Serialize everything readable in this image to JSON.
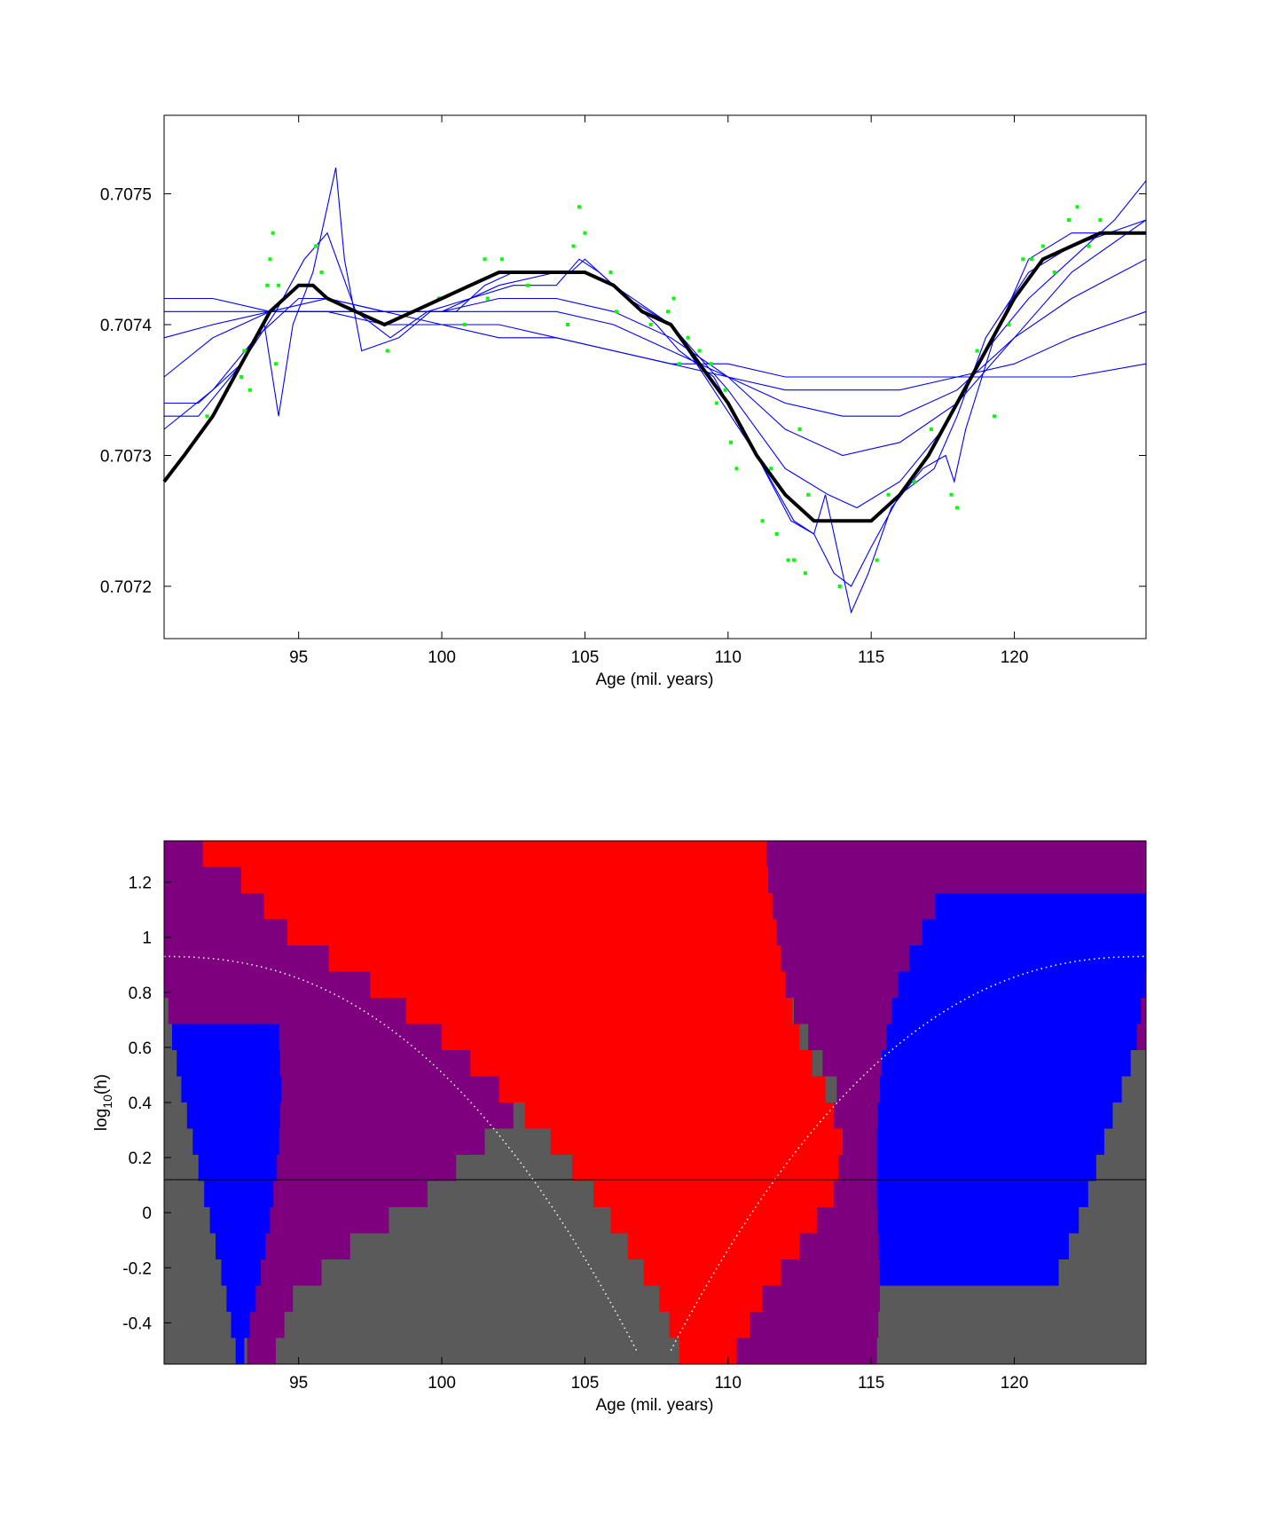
{
  "chart_data": [
    {
      "type": "line",
      "title": "",
      "xlabel": "Age (mil. years)",
      "ylabel": "",
      "xlim": [
        90.3,
        124.6
      ],
      "ylim": [
        0.70716,
        0.70756
      ],
      "xticks": [
        95,
        100,
        105,
        110,
        115,
        120
      ],
      "yticks": [
        0.7072,
        0.7073,
        0.7074,
        0.7075
      ],
      "grid": false,
      "colors": {
        "fits": "#0000ff",
        "mean": "#000000",
        "points": "#00ff00"
      },
      "main_curve": {
        "x": [
          90.3,
          91,
          92,
          93,
          94,
          95,
          95.5,
          96,
          97,
          98,
          99,
          100,
          101,
          102,
          103,
          104,
          105,
          106,
          107,
          108,
          109,
          110,
          111,
          112,
          113,
          114,
          115,
          116,
          117,
          118,
          119,
          120,
          121,
          122,
          123,
          124,
          124.6
        ],
        "y": [
          0.70728,
          0.7073,
          0.70733,
          0.70737,
          0.70741,
          0.70743,
          0.70743,
          0.70742,
          0.70741,
          0.7074,
          0.70741,
          0.70742,
          0.70743,
          0.70744,
          0.70744,
          0.70744,
          0.70744,
          0.70743,
          0.70741,
          0.7074,
          0.70737,
          0.70734,
          0.7073,
          0.70727,
          0.70725,
          0.70725,
          0.70725,
          0.70727,
          0.7073,
          0.70734,
          0.70738,
          0.70742,
          0.70745,
          0.70746,
          0.70747,
          0.70747,
          0.70747
        ]
      },
      "family_curves": [
        {
          "x": [
            90.3,
            92,
            94,
            96,
            98,
            100,
            102,
            104,
            106,
            108,
            110,
            112,
            114,
            116,
            118,
            120,
            122,
            124.6
          ],
          "y": [
            0.70742,
            0.70742,
            0.70741,
            0.70741,
            0.7074,
            0.7074,
            0.70739,
            0.70739,
            0.70738,
            0.70737,
            0.70737,
            0.70736,
            0.70736,
            0.70736,
            0.70736,
            0.70736,
            0.70736,
            0.70737
          ]
        },
        {
          "x": [
            90.3,
            92,
            94,
            96,
            98,
            100,
            102,
            104,
            106,
            108,
            110,
            112,
            114,
            116,
            118,
            120,
            122,
            124.6
          ],
          "y": [
            0.70741,
            0.70741,
            0.70741,
            0.70741,
            0.70741,
            0.7074,
            0.7074,
            0.70739,
            0.70738,
            0.70737,
            0.70736,
            0.70735,
            0.70735,
            0.70735,
            0.70736,
            0.70737,
            0.70739,
            0.70741
          ]
        },
        {
          "x": [
            90.3,
            92,
            94,
            96,
            98,
            100,
            102,
            104,
            106,
            108,
            110,
            112,
            114,
            116,
            118,
            120,
            122,
            124.6
          ],
          "y": [
            0.70739,
            0.7074,
            0.70741,
            0.70741,
            0.70741,
            0.70741,
            0.70741,
            0.70741,
            0.7074,
            0.70738,
            0.70736,
            0.70734,
            0.70733,
            0.70733,
            0.70735,
            0.70739,
            0.70742,
            0.70745
          ]
        },
        {
          "x": [
            90.3,
            92,
            94,
            96,
            98,
            100,
            102,
            104,
            106,
            108,
            110,
            112,
            114,
            116,
            118,
            120,
            122,
            124.6
          ],
          "y": [
            0.70736,
            0.70739,
            0.70741,
            0.70742,
            0.70741,
            0.70741,
            0.70742,
            0.70742,
            0.70741,
            0.70739,
            0.70736,
            0.70732,
            0.7073,
            0.70731,
            0.70734,
            0.70739,
            0.70744,
            0.70748
          ]
        },
        {
          "x": [
            90.3,
            92,
            93.5,
            95,
            96,
            98,
            100,
            102,
            104,
            105,
            106,
            108,
            110,
            112,
            113.5,
            114.5,
            116,
            117.5,
            119,
            120.5,
            122,
            123.5,
            124.6
          ],
          "y": [
            0.70732,
            0.70735,
            0.70739,
            0.70742,
            0.70742,
            0.70741,
            0.70741,
            0.70743,
            0.70744,
            0.70744,
            0.70743,
            0.7074,
            0.70735,
            0.70729,
            0.70727,
            0.70726,
            0.70728,
            0.70732,
            0.70738,
            0.70742,
            0.70745,
            0.70748,
            0.70751
          ]
        },
        {
          "x": [
            90.3,
            91.5,
            93,
            94.2,
            95.2,
            96,
            97,
            98.2,
            99.5,
            101,
            102.5,
            104,
            104.8,
            105.5,
            106.5,
            108,
            109.5,
            111,
            112.2,
            113,
            113.7,
            114.3,
            115,
            116,
            117.2,
            118,
            119,
            120.5,
            122,
            123.3,
            124.6
          ],
          "y": [
            0.70734,
            0.70734,
            0.70737,
            0.70741,
            0.70745,
            0.70747,
            0.70741,
            0.70739,
            0.70741,
            0.70742,
            0.70743,
            0.70743,
            0.70745,
            0.70744,
            0.70742,
            0.7074,
            0.70735,
            0.7073,
            0.70725,
            0.70724,
            0.70721,
            0.7072,
            0.70723,
            0.70727,
            0.70729,
            0.70733,
            0.70739,
            0.70744,
            0.70746,
            0.70747,
            0.70748
          ]
        },
        {
          "x": [
            90.3,
            91.5,
            93,
            93.8,
            94.3,
            94.8,
            95.5,
            96,
            96.3,
            96.6,
            97.2,
            98.5,
            99.6,
            100.5,
            101.5,
            102.5,
            103.5,
            104.5,
            105,
            106,
            107.5,
            108.3,
            109.5,
            111,
            112.3,
            113,
            113.4,
            113.8,
            114.3,
            114.9,
            115.7,
            116.8,
            117.6,
            117.9,
            118.3,
            119.3,
            120.5,
            122,
            123.3,
            124.6
          ],
          "y": [
            0.70733,
            0.70733,
            0.70737,
            0.7074,
            0.70733,
            0.7074,
            0.70744,
            0.70749,
            0.70752,
            0.70745,
            0.70738,
            0.70739,
            0.70741,
            0.70741,
            0.70743,
            0.70744,
            0.70744,
            0.70744,
            0.70745,
            0.70743,
            0.7074,
            0.70738,
            0.70736,
            0.7073,
            0.70725,
            0.70724,
            0.70727,
            0.70723,
            0.70718,
            0.70721,
            0.70726,
            0.70729,
            0.7073,
            0.70728,
            0.70732,
            0.70739,
            0.70745,
            0.70747,
            0.70747,
            0.70747
          ]
        }
      ],
      "points": {
        "x": [
          91.8,
          92.5,
          93.0,
          93.1,
          93.3,
          93.9,
          94.0,
          94.1,
          94.2,
          94.3,
          95.6,
          95.8,
          98.1,
          99.9,
          100.8,
          101.5,
          101.6,
          102.1,
          103.0,
          104.4,
          104.6,
          104.8,
          105.0,
          105.9,
          106.1,
          107.3,
          107.9,
          108.1,
          108.3,
          108.6,
          109.0,
          109.4,
          109.6,
          109.9,
          110.1,
          110.3,
          110.5,
          111.2,
          111.5,
          111.7,
          112.1,
          112.3,
          112.5,
          112.7,
          112.8,
          113.9,
          115.2,
          115.6,
          116.5,
          117.1,
          117.8,
          118.0,
          118.7,
          119.3,
          119.8,
          120.3,
          120.6,
          121.0,
          121.4,
          121.9,
          122.2,
          122.6,
          123.0
        ],
        "y": [
          0.70733,
          0.70735,
          0.70736,
          0.70738,
          0.70735,
          0.70743,
          0.70745,
          0.70747,
          0.70737,
          0.70743,
          0.70746,
          0.70744,
          0.70738,
          0.70742,
          0.7074,
          0.70745,
          0.70742,
          0.70745,
          0.70743,
          0.7074,
          0.70746,
          0.70749,
          0.70747,
          0.70744,
          0.70741,
          0.7074,
          0.70741,
          0.70742,
          0.70737,
          0.70739,
          0.70738,
          0.70737,
          0.70734,
          0.70735,
          0.70731,
          0.70729,
          0.70732,
          0.70725,
          0.70729,
          0.70724,
          0.70722,
          0.70722,
          0.70732,
          0.70721,
          0.70727,
          0.7072,
          0.70722,
          0.70727,
          0.70728,
          0.70732,
          0.70727,
          0.70726,
          0.70738,
          0.70733,
          0.7074,
          0.70745,
          0.70745,
          0.70746,
          0.70744,
          0.70748,
          0.70749,
          0.70746,
          0.70748
        ]
      }
    },
    {
      "type": "heatmap",
      "title": "",
      "xlabel": "Age (mil. years)",
      "ylabel": "log",
      "ylabel_sub": "10",
      "ylabel_tail": "(h)",
      "xlim": [
        90.3,
        124.6
      ],
      "ylim": [
        -0.55,
        1.35
      ],
      "xticks": [
        95,
        100,
        105,
        110,
        115,
        120
      ],
      "yticks": [
        -0.4,
        -0.2,
        0,
        0.2,
        0.4,
        0.6,
        0.8,
        1,
        1.2
      ],
      "ytick_labels": [
        "-0.4",
        "-0.2",
        "0",
        "0.2",
        "0.4",
        "0.6",
        "0.8",
        "1",
        "1.2"
      ],
      "grid": false,
      "colors": {
        "background": "#5a5a5a",
        "blue": "#0000ff",
        "purple": "#7f007f",
        "red": "#ff0000",
        "hline": "#000000",
        "dotted": "#ffffff"
      },
      "hline_y": 0.12,
      "regions": [
        {
          "color": "purple",
          "y": [
            -0.55,
            0.27,
            0.27,
            0.98,
            0.98,
            0.87,
            0.87,
            0.76,
            0.76,
            0.65,
            0.65,
            0.5,
            0.5,
            0.38,
            0.38,
            0.28,
            0.28,
            0.2,
            0.2,
            0.27,
            0.27,
            0.14,
            0.14,
            0.0,
            0.0,
            -0.1,
            -0.1,
            -0.2,
            -0.2,
            -0.3,
            -0.3,
            -0.55
          ],
          "x": [
            90.3,
            90.3,
            90.3,
            90.3,
            94,
            94,
            97,
            97,
            98.5,
            98.5,
            100,
            100,
            101,
            101,
            102,
            102,
            103,
            103,
            105,
            105,
            106,
            106,
            107.5,
            107.5,
            108.5,
            108.5,
            109.5,
            109.5,
            110.2,
            110.2,
            110.5,
            110.5
          ],
          "min": [
            90.3,
            90.3,
            90.3,
            90.3,
            90.3,
            90.3,
            90.3,
            90.3,
            90.3,
            90.3,
            90.3,
            90.3,
            90.3,
            90.3,
            90.3,
            90.3
          ]
        }
      ]
    }
  ]
}
